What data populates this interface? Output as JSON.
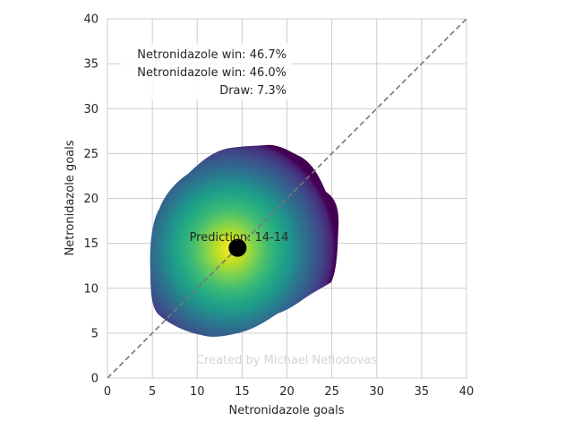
{
  "chart_data": {
    "type": "heatmap",
    "title": "",
    "xlabel": "Netronidazole goals",
    "ylabel": "Netronidazole goals",
    "xlim": [
      0,
      40
    ],
    "ylim": [
      0,
      40
    ],
    "xticks": [
      0,
      5,
      10,
      15,
      20,
      25,
      30,
      35,
      40
    ],
    "yticks": [
      0,
      5,
      10,
      15,
      20,
      25,
      30,
      35,
      40
    ],
    "grid": true,
    "colormap": "viridis",
    "density": {
      "center": [
        14.5,
        14.5
      ],
      "extent_x": [
        4.7,
        26.0
      ],
      "extent_y": [
        4.5,
        26.0
      ]
    },
    "prediction_point": {
      "x": 14.5,
      "y": 14.5,
      "color": "#000000"
    },
    "prediction_label": "Prediction: 14-14",
    "diagonal": {
      "from": [
        0,
        0
      ],
      "to": [
        40,
        40
      ],
      "style": "dashed",
      "color": "#777777"
    },
    "outcomes": [
      "Netronidazole win: 46.7%",
      "Netronidazole win: 46.0%",
      "Draw: 7.3%"
    ],
    "watermark": "Created by Michael Nefiodovas"
  }
}
